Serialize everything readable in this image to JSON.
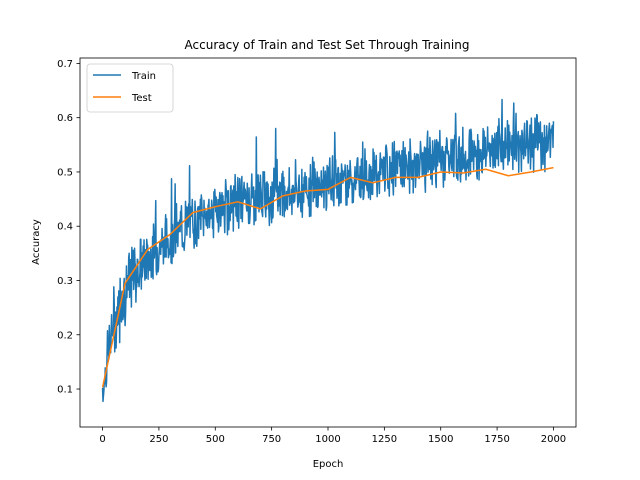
{
  "chart_data": {
    "type": "line",
    "title": "Accuracy of Train and Test Set Through Training",
    "xlabel": "Epoch",
    "ylabel": "Accuracy",
    "xlim": [
      -100,
      2100
    ],
    "ylim": [
      0.03,
      0.71
    ],
    "xticks": [
      0,
      250,
      500,
      750,
      1000,
      1250,
      1500,
      1750,
      2000
    ],
    "xtick_labels": [
      "0",
      "250",
      "500",
      "750",
      "1000",
      "1250",
      "1500",
      "1750",
      "2000"
    ],
    "yticks": [
      0.1,
      0.2,
      0.3,
      0.4,
      0.5,
      0.6,
      0.7
    ],
    "ytick_labels": [
      "0.1",
      "0.2",
      "0.3",
      "0.4",
      "0.5",
      "0.6",
      "0.7"
    ],
    "grid": false,
    "legend_position": "top-left",
    "series": [
      {
        "name": "Train",
        "color": "#1f77b4",
        "noisy": true,
        "x_start": 0,
        "x_end": 2000,
        "trend": [
          [
            0,
            0.1
          ],
          [
            25,
            0.17
          ],
          [
            50,
            0.22
          ],
          [
            100,
            0.28
          ],
          [
            150,
            0.32
          ],
          [
            200,
            0.34
          ],
          [
            300,
            0.38
          ],
          [
            400,
            0.41
          ],
          [
            500,
            0.43
          ],
          [
            600,
            0.445
          ],
          [
            700,
            0.455
          ],
          [
            800,
            0.46
          ],
          [
            900,
            0.47
          ],
          [
            1000,
            0.48
          ],
          [
            1100,
            0.49
          ],
          [
            1200,
            0.495
          ],
          [
            1300,
            0.505
          ],
          [
            1400,
            0.515
          ],
          [
            1500,
            0.525
          ],
          [
            1600,
            0.53
          ],
          [
            1700,
            0.54
          ],
          [
            1800,
            0.55
          ],
          [
            1900,
            0.555
          ],
          [
            2000,
            0.56
          ]
        ],
        "max": 0.675,
        "min": 0.06
      },
      {
        "name": "Test",
        "color": "#ff7f0e",
        "x": [
          0,
          100,
          200,
          300,
          400,
          500,
          600,
          700,
          800,
          900,
          1000,
          1100,
          1200,
          1300,
          1400,
          1500,
          1600,
          1700,
          1800,
          1900,
          2000
        ],
        "y": [
          0.103,
          0.295,
          0.357,
          0.385,
          0.425,
          0.436,
          0.445,
          0.432,
          0.456,
          0.465,
          0.468,
          0.49,
          0.48,
          0.49,
          0.49,
          0.5,
          0.498,
          0.505,
          0.493,
          0.5,
          0.508
        ]
      }
    ]
  }
}
